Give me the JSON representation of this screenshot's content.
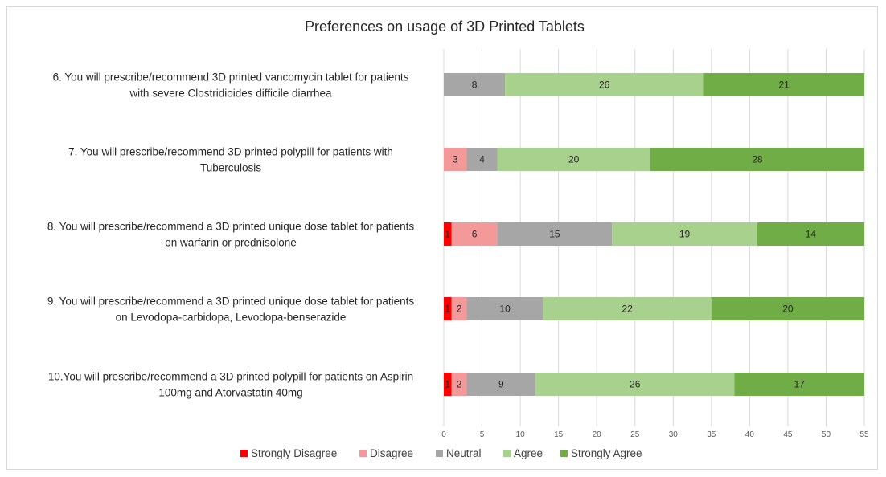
{
  "chart_data": {
    "type": "bar",
    "orientation": "horizontal",
    "stacked": true,
    "title": "Preferences on usage of 3D Printed Tablets",
    "xlim": [
      0,
      55
    ],
    "xticks": [
      "0",
      "5",
      "10",
      "15",
      "20",
      "25",
      "30",
      "35",
      "40",
      "45",
      "50",
      "55"
    ],
    "grid": true,
    "legend_position": "bottom",
    "categories": [
      [
        "6. You will prescribe/recommend 3D printed vancomycin tablet for patients",
        "with severe Clostridioides difficile diarrhea"
      ],
      [
        "7. You will prescribe/recommend 3D printed polypill for patients with",
        "Tuberculosis"
      ],
      [
        "8. You will prescribe/recommend a 3D printed unique dose tablet for patients",
        "on warfarin or prednisolone"
      ],
      [
        "9. You will prescribe/recommend a 3D printed unique dose tablet for patients",
        "on Levodopa-carbidopa, Levodopa-benserazide"
      ],
      [
        "10.You will prescribe/recommend a 3D printed polypill for patients on Aspirin",
        "100mg and Atorvastatin 40mg"
      ]
    ],
    "series": [
      {
        "name": "Strongly Disagree",
        "color": "#ff0000",
        "values": [
          0,
          0,
          1,
          1,
          1
        ]
      },
      {
        "name": "Disagree",
        "color": "#f4999a",
        "values": [
          0,
          3,
          6,
          2,
          2
        ]
      },
      {
        "name": "Neutral",
        "color": "#a6a6a6",
        "values": [
          8,
          4,
          15,
          10,
          9
        ]
      },
      {
        "name": "Agree",
        "color": "#a9d18e",
        "values": [
          26,
          20,
          19,
          22,
          26
        ]
      },
      {
        "name": "Strongly Agree",
        "color": "#70ad47",
        "values": [
          21,
          28,
          14,
          20,
          17
        ]
      }
    ]
  }
}
